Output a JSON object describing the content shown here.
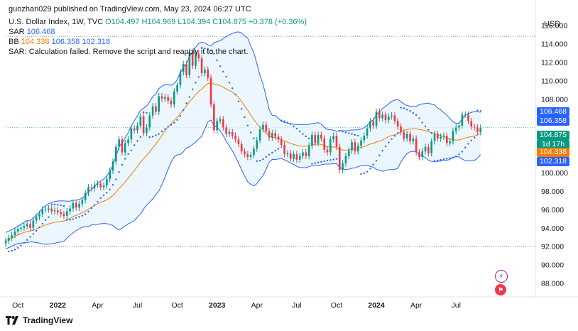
{
  "header": {
    "publisher": "guozhan029 published on TradingView.com, May 23, 2024 06:27 UTC",
    "symbol_line": "U.S. Dollar Index, 1W, TVC",
    "ohlc": {
      "o": "O104.497",
      "h": "H104.969",
      "l": "L104.394",
      "c": "C104.875",
      "chg": "+0.378 (+0.36%)"
    },
    "sar_label": "SAR",
    "sar_value": "106.468",
    "bb_label": "BB",
    "bb_middle": "104.338",
    "bb_upper": "106.358",
    "bb_lower": "102.318",
    "sar_error": "SAR: Calculation failed. Remove the script and reapply it to the chart."
  },
  "currency": "USD",
  "footer": {
    "brand": "TradingView"
  },
  "price_tags": [
    {
      "text": "106.468",
      "color": "#2962ff",
      "value": 106.468
    },
    {
      "text": "106.358",
      "color": "#2962ff",
      "value": 106.358
    },
    {
      "text": "104.875",
      "color": "#089981",
      "value": 104.875
    },
    {
      "text": "1d 17h",
      "color": "#089981",
      "value": 103.95
    },
    {
      "text": "104.338",
      "color": "#f57c00",
      "value": 104.338
    },
    {
      "text": "102.318",
      "color": "#2962ff",
      "value": 102.318
    }
  ],
  "icons": {
    "flash": "flash-icon",
    "flag": "us-flag-icon"
  },
  "colors": {
    "up": "#089981",
    "down": "#f23645",
    "bb_band": "#2962ff",
    "bb_middle": "#f57c00",
    "sar_dot": "#2962ff",
    "band_fill": "#e3f2fd"
  },
  "chart_data": {
    "type": "candlestick",
    "interval": "1W",
    "y_ticks": [
      "116.000",
      "114.000",
      "112.000",
      "110.000",
      "108.000",
      "106.000",
      "104.000",
      "102.000",
      "100.000",
      "98.000",
      "96.000",
      "94.000",
      "92.000",
      "90.000",
      "88.000"
    ],
    "y_tick_values": [
      116,
      114,
      112,
      110,
      108,
      106,
      104,
      102,
      100,
      98,
      96,
      94,
      92,
      90,
      88
    ],
    "x_tick_labels": [
      {
        "label": "Oct",
        "bold": false,
        "week": 4
      },
      {
        "label": "2022",
        "bold": true,
        "week": 17
      },
      {
        "label": "Apr",
        "bold": false,
        "week": 30
      },
      {
        "label": "Jul",
        "bold": false,
        "week": 43
      },
      {
        "label": "Oct",
        "bold": false,
        "week": 56
      },
      {
        "label": "2023",
        "bold": true,
        "week": 69
      },
      {
        "label": "Apr",
        "bold": false,
        "week": 82
      },
      {
        "label": "Jul",
        "bold": false,
        "week": 95
      },
      {
        "label": "Oct",
        "bold": false,
        "week": 108
      },
      {
        "label": "2024",
        "bold": true,
        "week": 121
      },
      {
        "label": "Apr",
        "bold": false,
        "week": 134
      },
      {
        "label": "Jul",
        "bold": false,
        "week": 147
      }
    ],
    "ylim": [
      86.5,
      117.2
    ],
    "week_count": 160,
    "horizontal_lines": [
      114.8,
      104.875,
      92.0
    ],
    "close": [
      92.6,
      92.9,
      93.2,
      93.6,
      93.9,
      94.0,
      94.2,
      94.4,
      94.0,
      94.8,
      95.2,
      95.5,
      96.0,
      96.0,
      96.1,
      95.8,
      95.9,
      95.7,
      95.5,
      95.3,
      95.8,
      96.1,
      96.7,
      96.2,
      96.6,
      97.0,
      97.8,
      98.4,
      98.3,
      98.7,
      98.8,
      98.4,
      98.6,
      99.3,
      100.2,
      101.2,
      102.8,
      103.6,
      102.2,
      103.2,
      103.6,
      104.8,
      104.6,
      105.1,
      106.1,
      104.3,
      104.9,
      106.2,
      107.2,
      106.6,
      108.3,
      108.0,
      108.2,
      107.8,
      107.4,
      108.8,
      109.5,
      110.9,
      111.8,
      110.6,
      113.1,
      111.6,
      112.9,
      112.4,
      110.8,
      111.2,
      110.3,
      107.4,
      104.6,
      105.6,
      105.8,
      104.9,
      104.2,
      104.4,
      104.0,
      103.6,
      103.1,
      102.3,
      102.0,
      101.7,
      101.9,
      102.6,
      103.5,
      104.7,
      105.2,
      104.5,
      103.8,
      104.3,
      103.9,
      103.6,
      103.0,
      102.0,
      102.1,
      101.5,
      102.0,
      101.4,
      101.8,
      102.2,
      101.8,
      102.9,
      104.1,
      103.2,
      104.1,
      103.7,
      102.5,
      102.2,
      103.6,
      104.0,
      102.8,
      100.3,
      101.0,
      101.8,
      102.4,
      103.3,
      102.3,
      102.9,
      103.5,
      104.0,
      104.8,
      105.6,
      105.1,
      106.6,
      105.9,
      106.3,
      105.7,
      106.1,
      106.2,
      105.6,
      105.0,
      104.4,
      103.7,
      104.2,
      103.4,
      103.7,
      102.2,
      101.7,
      102.3,
      102.8,
      102.1,
      103.4,
      104.2,
      103.7,
      103.9,
      104.0,
      103.2,
      103.4,
      104.5,
      104.9,
      105.1,
      106.3,
      106.3,
      105.6,
      105.0,
      104.9,
      104.4,
      104.875
    ],
    "sar_value": 106.468,
    "bb_values": {
      "upper": 106.358,
      "middle": 104.338,
      "lower": 102.318
    }
  }
}
